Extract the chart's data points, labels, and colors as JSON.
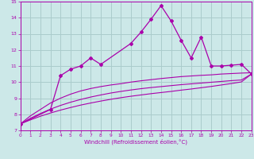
{
  "xlabel": "Windchill (Refroidissement éolien,°C)",
  "background_color": "#cce8e8",
  "grid_color": "#aacccc",
  "line_color": "#aa00aa",
  "x_data": [
    0,
    1,
    2,
    3,
    4,
    5,
    6,
    7,
    8,
    9,
    10,
    11,
    12,
    13,
    14,
    15,
    16,
    17,
    18,
    19,
    20,
    21,
    22,
    23
  ],
  "y_main": [
    7.4,
    null,
    null,
    8.3,
    10.4,
    10.8,
    11.0,
    11.5,
    11.1,
    null,
    null,
    12.4,
    13.1,
    13.9,
    14.75,
    13.8,
    12.6,
    11.5,
    12.8,
    11.0,
    11.0,
    11.05,
    11.1,
    10.5
  ],
  "y_line1": [
    7.4,
    7.9,
    8.3,
    8.7,
    9.0,
    9.25,
    9.45,
    9.6,
    9.72,
    9.82,
    9.9,
    10.0,
    10.08,
    10.15,
    10.22,
    10.28,
    10.34,
    10.38,
    10.42,
    10.45,
    10.5,
    10.53,
    10.56,
    10.58
  ],
  "y_line2": [
    7.4,
    7.75,
    8.05,
    8.32,
    8.55,
    8.75,
    8.92,
    9.07,
    9.2,
    9.32,
    9.42,
    9.51,
    9.59,
    9.66,
    9.72,
    9.78,
    9.84,
    9.89,
    9.94,
    9.99,
    10.04,
    10.09,
    10.13,
    10.5
  ],
  "y_line3": [
    7.4,
    7.65,
    7.88,
    8.08,
    8.26,
    8.42,
    8.57,
    8.7,
    8.82,
    8.93,
    9.03,
    9.12,
    9.2,
    9.28,
    9.35,
    9.42,
    9.5,
    9.57,
    9.65,
    9.73,
    9.82,
    9.91,
    10.01,
    10.5
  ],
  "ylim": [
    7,
    15
  ],
  "xlim": [
    0,
    23
  ],
  "yticks": [
    7,
    8,
    9,
    10,
    11,
    12,
    13,
    14,
    15
  ],
  "xticks": [
    0,
    1,
    2,
    3,
    4,
    5,
    6,
    7,
    8,
    9,
    10,
    11,
    12,
    13,
    14,
    15,
    16,
    17,
    18,
    19,
    20,
    21,
    22,
    23
  ]
}
